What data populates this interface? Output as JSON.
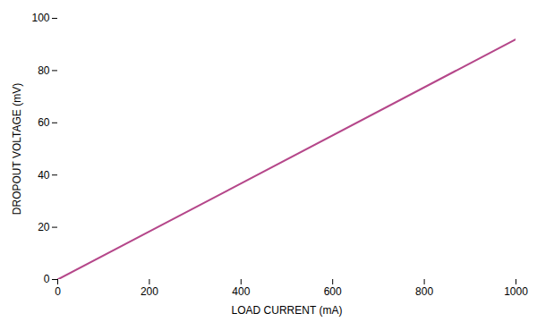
{
  "chart_data": {
    "type": "line",
    "x": [
      0,
      1000
    ],
    "y": [
      0,
      92
    ],
    "color": "#b5478a",
    "xlabel": "LOAD CURRENT (mA)",
    "ylabel": "DROPOUT VOLTAGE (mV)",
    "xlim": [
      0,
      1000
    ],
    "ylim": [
      0,
      100
    ],
    "xticks": [
      0,
      200,
      400,
      600,
      800,
      1000
    ],
    "yticks": [
      0,
      20,
      40,
      60,
      80,
      100
    ],
    "grid": false
  }
}
